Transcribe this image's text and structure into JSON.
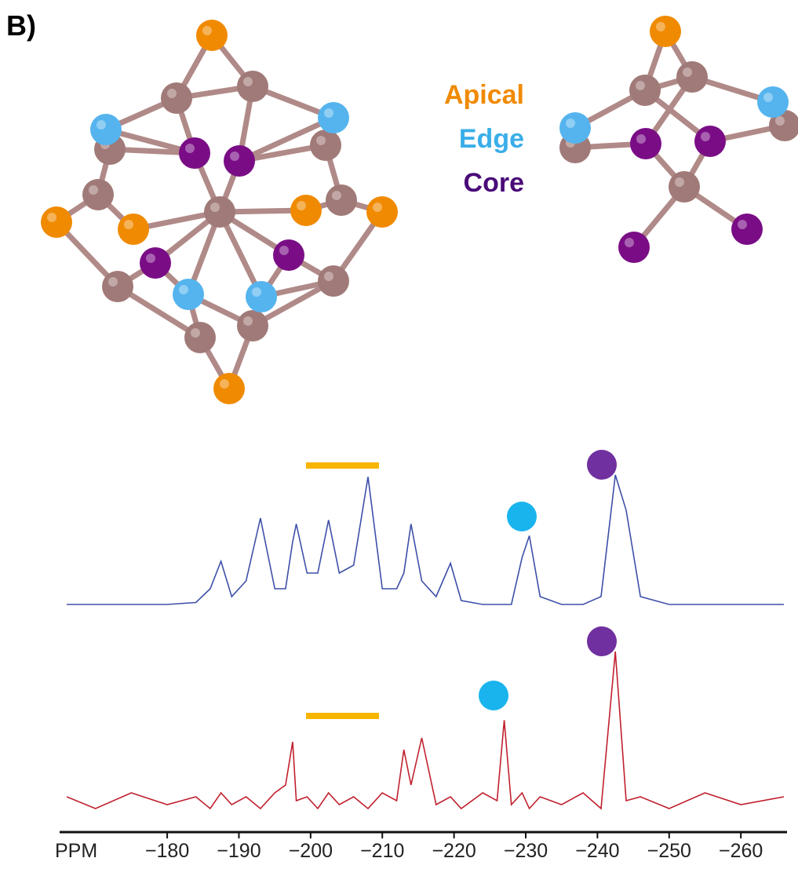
{
  "figure": {
    "panel_label": "B)",
    "labels": [
      {
        "text": "Apical",
        "color": "#f08a00"
      },
      {
        "text": "Edge",
        "color": "#3aaee8"
      },
      {
        "text": "Core",
        "color": "#4a0a78"
      }
    ]
  },
  "chart_data": {
    "type": "line",
    "xlabel": "PPM",
    "x": [
      -166,
      -170,
      -175,
      -180,
      -184,
      -186,
      -187.5,
      -189,
      -191,
      -193,
      -195,
      -196.5,
      -197.5,
      -198,
      -199.5,
      -201,
      -202.5,
      -204,
      -206,
      -208,
      -210,
      -212,
      -213,
      -214,
      -215.5,
      -217.5,
      -219.5,
      -221,
      -224,
      -226,
      -227,
      -228,
      -229.5,
      -230.5,
      -232,
      -235,
      -238,
      -240.5,
      -242.5,
      -244,
      -246,
      -250,
      -255,
      -260,
      -266
    ],
    "series": [
      {
        "color": "#3d4fa8",
        "values": [
          58,
          58,
          58,
          58,
          58.5,
          62,
          69,
          60,
          64,
          80,
          62,
          62,
          74,
          78.5,
          66,
          66,
          79.5,
          66,
          68,
          90.5,
          62,
          62,
          66,
          78.5,
          64,
          60,
          68.5,
          59,
          58,
          58,
          58,
          58,
          70,
          75.5,
          60,
          58,
          58,
          60,
          91,
          82,
          60,
          58,
          58,
          58,
          58
        ]
      },
      {
        "color": "#c0202e",
        "values": [
          9,
          6,
          10,
          7,
          9,
          6,
          10,
          7,
          9,
          6,
          10,
          12,
          23,
          8,
          9,
          6,
          10,
          7,
          9,
          6,
          10,
          8,
          21,
          12,
          24,
          7,
          9,
          6,
          10,
          8,
          28.5,
          7,
          10,
          6,
          9,
          7,
          10,
          6,
          46,
          8,
          9,
          6,
          10,
          7,
          9
        ]
      }
    ],
    "xlim": [
      -165,
      -266
    ],
    "ylim": [
      0,
      100
    ],
    "xticks": [
      {
        "value": -180,
        "label": "−180"
      },
      {
        "value": -190,
        "label": "−190"
      },
      {
        "value": -200,
        "label": "−200"
      },
      {
        "value": -210,
        "label": "−210"
      },
      {
        "value": -220,
        "label": "−220"
      },
      {
        "value": -230,
        "label": "−230"
      },
      {
        "value": -240,
        "label": "−240"
      },
      {
        "value": -250,
        "label": "−250"
      },
      {
        "value": -260,
        "label": "−260"
      }
    ]
  }
}
